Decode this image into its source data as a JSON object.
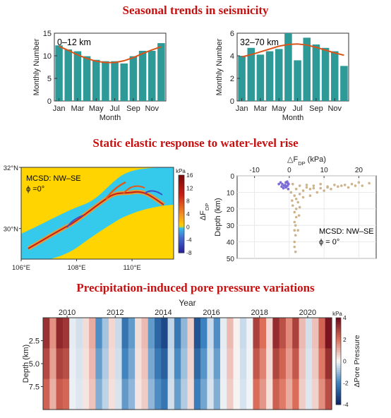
{
  "titles": {
    "seasonal": "Seasonal trends in seismicity",
    "elastic": "Static elastic response to water-level rise",
    "precip": "Precipitation-induced pore pressure variations"
  },
  "chart_data": [
    {
      "type": "bar",
      "panel": "seasonal-shallow",
      "annotation": "0–12 km",
      "categories": [
        "Jan",
        "Feb",
        "Mar",
        "Apr",
        "May",
        "Jun",
        "Jul",
        "Aug",
        "Sep",
        "Oct",
        "Nov",
        "Dec"
      ],
      "tick_labels": [
        "Jan",
        "Mar",
        "May",
        "Jul",
        "Sep",
        "Nov"
      ],
      "values": [
        12.3,
        11.4,
        11.0,
        9.9,
        9.1,
        8.8,
        8.8,
        8.3,
        9.9,
        11.1,
        11.1,
        12.8
      ],
      "fit_values": [
        12.1,
        11.2,
        10.2,
        9.4,
        8.8,
        8.5,
        8.5,
        8.9,
        9.6,
        10.5,
        11.3,
        12.0
      ],
      "xlabel": "Month",
      "ylabel": "Monthly Number",
      "ylim": [
        0,
        15
      ],
      "yticks": [
        0,
        5,
        10,
        15
      ],
      "bar_color": "#2d9a98",
      "fit_color": "#d9541a"
    },
    {
      "type": "bar",
      "panel": "seasonal-deep",
      "annotation": "32–70 km",
      "categories": [
        "Jan",
        "Feb",
        "Mar",
        "Apr",
        "May",
        "Jun",
        "Jul",
        "Aug",
        "Sep",
        "Oct",
        "Nov",
        "Dec"
      ],
      "tick_labels": [
        "Jan",
        "Mar",
        "May",
        "Jul",
        "Sep",
        "Nov"
      ],
      "values": [
        4.0,
        4.7,
        4.1,
        4.4,
        4.6,
        6.0,
        3.6,
        5.6,
        5.0,
        4.7,
        4.4,
        3.1
      ],
      "fit_values": [
        3.9,
        4.1,
        4.35,
        4.6,
        4.85,
        5.0,
        5.05,
        4.95,
        4.75,
        4.5,
        4.25,
        4.05
      ],
      "xlabel": "Month",
      "ylabel": "Monthly Number",
      "ylim": [
        0,
        6
      ],
      "yticks": [
        0,
        2,
        4,
        6
      ],
      "bar_color": "#2d9a98",
      "fit_color": "#d9541a"
    },
    {
      "type": "heatmap",
      "panel": "map",
      "annotation_lines": [
        "MCSD: NW–SE",
        "ϕ =0°"
      ],
      "xticks": [
        "106°E",
        "108°E",
        "110°E"
      ],
      "yticks": [
        "32°N",
        "30°N"
      ],
      "xlim": [
        106,
        111.5
      ],
      "ylim": [
        29,
        32
      ],
      "colorbar": {
        "unit": "kPa",
        "label": "ΔF",
        "label_sub": "DP",
        "ticks": [
          16,
          12,
          8,
          4,
          0,
          -4,
          -8
        ],
        "range": [
          -8,
          16
        ]
      }
    },
    {
      "type": "scatter",
      "panel": "depth-scatter",
      "xlabel": "△F",
      "xlabel_sub": "DP",
      "xlabel_unit": "(kPa)",
      "ylabel": "Depth (km)",
      "xlim": [
        -15,
        25
      ],
      "ylim": [
        0,
        50
      ],
      "xticks": [
        -10,
        0,
        10,
        20
      ],
      "yticks": [
        0,
        10,
        20,
        30,
        40,
        50
      ],
      "annotation_lines": [
        "MCSD: NW–SE",
        "ϕ = 0°"
      ],
      "series": [
        {
          "color": "#7b6bd6",
          "points": [
            [
              -2.5,
              4
            ],
            [
              -2,
              5
            ],
            [
              -1.5,
              6
            ],
            [
              -1,
              7
            ],
            [
              -0.6,
              3.5
            ],
            [
              -0.3,
              8
            ],
            [
              -1.2,
              5.5
            ],
            [
              -0.8,
              6.5
            ],
            [
              -2.2,
              6.5
            ],
            [
              -0.4,
              4.5
            ],
            [
              -1.7,
              7.5
            ],
            [
              -0.2,
              5
            ],
            [
              -3,
              5
            ],
            [
              -1,
              4
            ],
            [
              -0.5,
              6
            ]
          ]
        },
        {
          "color": "#cdb48c",
          "points": [
            [
              1,
              5
            ],
            [
              3,
              6
            ],
            [
              5,
              5.5
            ],
            [
              7,
              6
            ],
            [
              9,
              5
            ],
            [
              11,
              6.5
            ],
            [
              13,
              5.5
            ],
            [
              15,
              6
            ],
            [
              17,
              7
            ],
            [
              20,
              4
            ],
            [
              23,
              4.5
            ],
            [
              2,
              8
            ],
            [
              4,
              9
            ],
            [
              6,
              8
            ],
            [
              8,
              10
            ],
            [
              10,
              9
            ],
            [
              12,
              8
            ],
            [
              1.5,
              12
            ],
            [
              2,
              14
            ],
            [
              2.5,
              16
            ],
            [
              1,
              18
            ],
            [
              2,
              20
            ],
            [
              1.5,
              22
            ],
            [
              2,
              25
            ],
            [
              1.5,
              28
            ],
            [
              1.8,
              30
            ],
            [
              1.5,
              33
            ],
            [
              1.8,
              36
            ],
            [
              1.5,
              40
            ],
            [
              1.5,
              43
            ],
            [
              1.8,
              46
            ],
            [
              3,
              11
            ],
            [
              4,
              13
            ],
            [
              0.5,
              10
            ],
            [
              0.8,
              15
            ],
            [
              5,
              7
            ],
            [
              7,
              7.5
            ],
            [
              9,
              7.5
            ],
            [
              11,
              7
            ],
            [
              14,
              6.5
            ],
            [
              16,
              5.5
            ],
            [
              18,
              5
            ],
            [
              19,
              6
            ],
            [
              21,
              6
            ],
            [
              6,
              12
            ],
            [
              3,
              19
            ],
            [
              2.8,
              24
            ],
            [
              2.5,
              33
            ]
          ]
        }
      ]
    },
    {
      "type": "heatmap",
      "panel": "pore-pressure",
      "xlabel": "Year",
      "xticks": [
        2010,
        2012,
        2014,
        2016,
        2018,
        2020
      ],
      "xlim": [
        2009,
        2021
      ],
      "ylabel": "Depth (km)",
      "yticks": [
        2.5,
        5.0,
        7.5
      ],
      "ylim": [
        0,
        10
      ],
      "colorbar": {
        "unit": "kPa",
        "label": "ΔPore Pressure",
        "ticks": [
          4,
          2,
          0,
          -2,
          -4
        ],
        "range": [
          -4,
          4
        ]
      },
      "column_values": [
        3.2,
        1.5,
        3.4,
        3.1,
        -0.2,
        -0.4,
        0.4,
        1.1,
        -1.8,
        -0.9,
        0.5,
        -0.5,
        -2.3,
        -1.6,
        0.4,
        0.9,
        -1.6,
        -2.6,
        -3.2,
        -0.6,
        -2.2,
        -1.1,
        0.6,
        -3.0,
        -2.0,
        -0.5,
        -1.8,
        -0.2,
        0.9,
        0.1,
        -0.5,
        -0.1,
        2.9,
        2.0,
        0.5,
        3.3,
        2.6,
        1.6,
        2.9,
        0.9,
        -0.4,
        0.8,
        2.2,
        3.8
      ]
    }
  ]
}
